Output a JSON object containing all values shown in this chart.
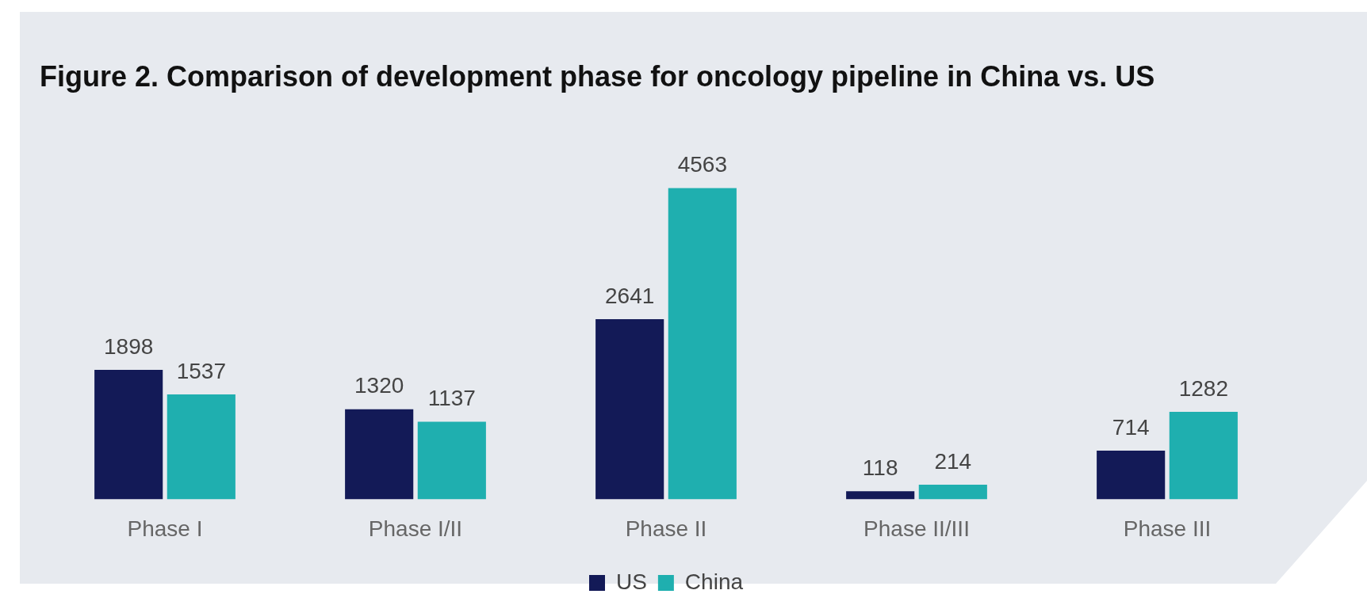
{
  "chart_data": {
    "type": "bar",
    "title": "Figure 2. Comparison of development phase for oncology pipeline in China vs. US",
    "categories": [
      "Phase I",
      "Phase I/II",
      "Phase II",
      "Phase II/III",
      "Phase III"
    ],
    "series": [
      {
        "name": "US",
        "color": "#131a57",
        "values": [
          1898,
          1320,
          2641,
          118,
          714
        ]
      },
      {
        "name": "China",
        "color": "#1fafaf",
        "values": [
          1537,
          1137,
          4563,
          214,
          1282
        ]
      }
    ],
    "data_labels": true,
    "legend": "bottom",
    "grid": false
  }
}
